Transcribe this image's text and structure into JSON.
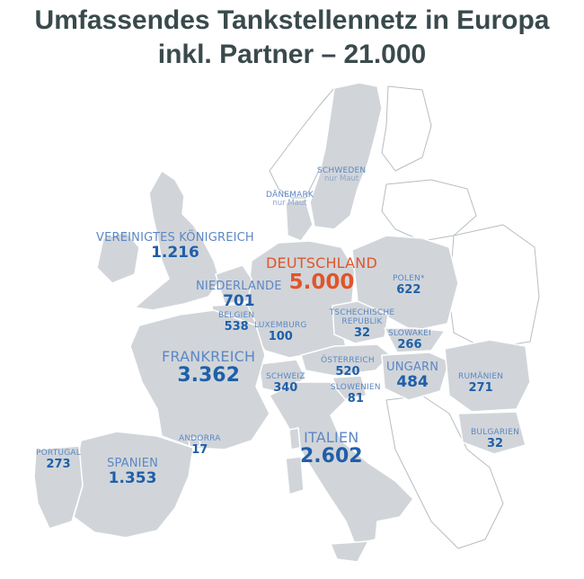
{
  "title": {
    "line1": "Umfassendes Tankstellennetz in Europa",
    "line2": "inkl. Partner – 21.000"
  },
  "colors": {
    "land_highlight": "#d1d5d9",
    "land_other": "#ffffff",
    "border": "#b7bdc2",
    "label": "#5c87c4",
    "number": "#1f5fa9",
    "germany": "#e0552b"
  },
  "countries": [
    {
      "id": "uk",
      "name": "VEREINIGTES KÖNIGREICH",
      "value": "1.216"
    },
    {
      "id": "nl",
      "name": "NIEDERLANDE",
      "value": "701"
    },
    {
      "id": "de",
      "name": "DEUTSCHLAND",
      "value": "5.000"
    },
    {
      "id": "pl",
      "name": "POLEN*",
      "value": "622"
    },
    {
      "id": "be",
      "name": "BELGIEN",
      "value": "538"
    },
    {
      "id": "lu",
      "name": "LUXEMBURG",
      "value": "100"
    },
    {
      "id": "cz",
      "name": "TSCHECHISCHE REPUBLIK",
      "value": "32"
    },
    {
      "id": "sk",
      "name": "SLOWAKEI",
      "value": "266"
    },
    {
      "id": "fr",
      "name": "FRANKREICH",
      "value": "3.362"
    },
    {
      "id": "ch",
      "name": "SCHWEIZ",
      "value": "340"
    },
    {
      "id": "at",
      "name": "ÖSTERREICH",
      "value": "520"
    },
    {
      "id": "hu",
      "name": "UNGARN",
      "value": "484"
    },
    {
      "id": "si",
      "name": "SLOWENIEN",
      "value": "81"
    },
    {
      "id": "ro",
      "name": "RUMÄNIEN",
      "value": "271"
    },
    {
      "id": "ad",
      "name": "ANDORRA",
      "value": "17"
    },
    {
      "id": "it",
      "name": "ITALIEN",
      "value": "2.602"
    },
    {
      "id": "bg",
      "name": "BULGARIEN",
      "value": "32"
    },
    {
      "id": "pt",
      "name": "PORTUGAL",
      "value": "273"
    },
    {
      "id": "es",
      "name": "SPANIEN",
      "value": "1.353"
    },
    {
      "id": "se",
      "name": "SCHWEDEN",
      "value": "nur Maut"
    },
    {
      "id": "dk",
      "name": "DÄNEMARK",
      "value": "nur Maut"
    }
  ]
}
